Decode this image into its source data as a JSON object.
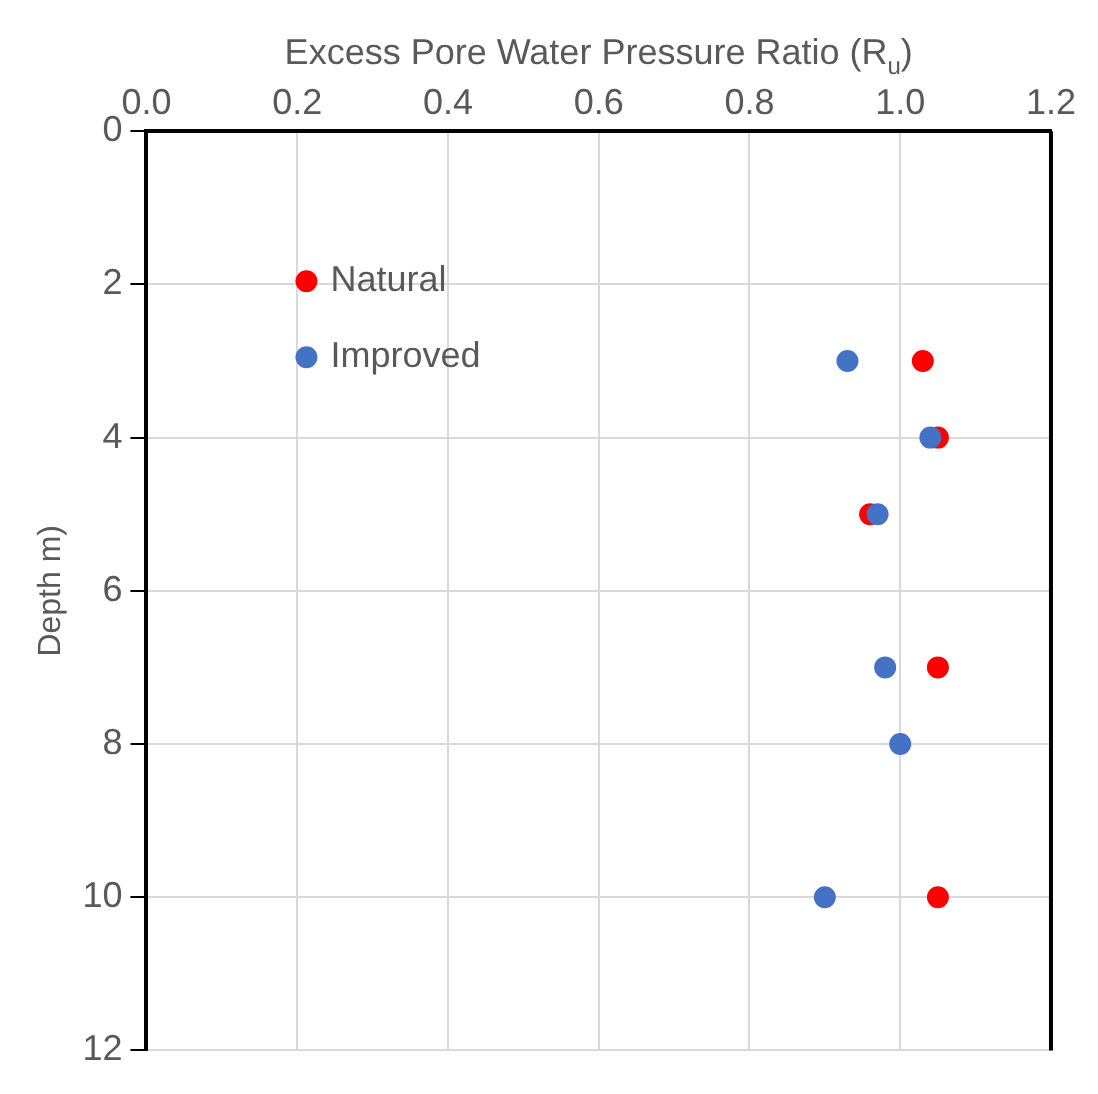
{
  "chart_data": {
    "type": "scatter",
    "xlabel": "Excess Pore Water Pressure Ratio (R$_{u}$)",
    "ylabel": "Depth m)",
    "xlim": [
      0,
      1.2
    ],
    "xticks": [
      {
        "value": 0,
        "label": "0.0"
      },
      0.2,
      0.4,
      0.6,
      0.8,
      {
        "value": 1,
        "label": "1.0"
      },
      1.2
    ],
    "ylim": [
      12,
      0
    ],
    "yticks": [
      0,
      2,
      4,
      6,
      8,
      10,
      12
    ],
    "grid": true,
    "legend": "top left",
    "marker": "circle",
    "series": [
      {
        "name": "Natural",
        "color": "#ff0000",
        "x": [
          1.03,
          1.05,
          0.96,
          1.05,
          1.05
        ],
        "values": [
          3,
          4,
          5,
          7,
          10
        ]
      },
      {
        "name": "Improved",
        "color": "#4472c4",
        "x": [
          0.93,
          1.04,
          0.97,
          0.98,
          1.0,
          0.9
        ],
        "values": [
          3,
          4,
          5,
          7,
          8,
          10
        ]
      }
    ]
  }
}
